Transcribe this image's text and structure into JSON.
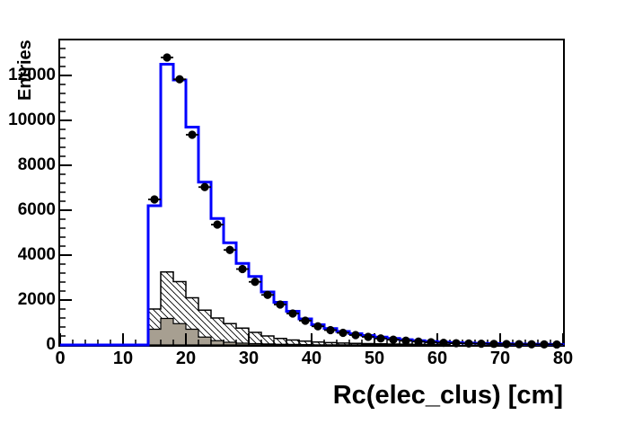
{
  "chart_data": {
    "type": "bar",
    "subtype": "step-histogram-with-points",
    "title": "",
    "xlabel": "Rc(elec_clus) [cm]",
    "ylabel": "Entries",
    "xlim": [
      0,
      80
    ],
    "ylim": [
      0,
      13560
    ],
    "x_ticks": [
      0,
      10,
      20,
      30,
      40,
      50,
      60,
      70,
      80
    ],
    "y_ticks": [
      0,
      2000,
      4000,
      6000,
      8000,
      10000,
      12000
    ],
    "x_minor_step": 2,
    "y_minor_step": 400,
    "grid": "off",
    "legend": "none",
    "bin_start": 14,
    "bin_width": 2,
    "series": [
      {
        "name": "total-histogram",
        "style": "step-line",
        "color": "#0000ff",
        "values": [
          6200,
          12500,
          11800,
          9700,
          7250,
          5630,
          4550,
          3630,
          3050,
          2360,
          1900,
          1500,
          1160,
          900,
          730,
          600,
          500,
          420,
          350,
          290,
          235,
          190,
          155,
          125,
          100,
          85,
          70,
          58,
          48,
          40,
          34,
          29,
          25
        ]
      },
      {
        "name": "background-hatched",
        "style": "hatched-fill",
        "color": "#000000",
        "fill": "diagonal-hatch",
        "values": [
          1600,
          3250,
          2820,
          2100,
          1550,
          1200,
          950,
          750,
          560,
          400,
          290,
          220,
          170,
          130,
          105,
          85,
          70,
          58,
          48,
          40,
          33,
          27,
          22,
          18,
          0,
          0,
          0,
          0,
          0,
          0,
          0,
          0,
          0
        ]
      },
      {
        "name": "background-gray",
        "style": "solid-fill",
        "color": "#a79f91",
        "values": [
          700,
          1180,
          950,
          700,
          350,
          190,
          120,
          80,
          60,
          45,
          33,
          25,
          18,
          0,
          0,
          0,
          0,
          0,
          0,
          0,
          0,
          0,
          0,
          0,
          0,
          0,
          0,
          0,
          0,
          0,
          0,
          0,
          0
        ]
      },
      {
        "name": "data-points",
        "style": "scatter-errorbar",
        "color": "#000000",
        "x": [
          15,
          17,
          19,
          21,
          23,
          25,
          27,
          29,
          31,
          33,
          35,
          37,
          39,
          41,
          43,
          45,
          47,
          49,
          51,
          53,
          55,
          57,
          59,
          61,
          63,
          65,
          67,
          69,
          71,
          73,
          75,
          77,
          79
        ],
        "y": [
          6480,
          12800,
          11830,
          9360,
          7030,
          5360,
          4230,
          3380,
          2810,
          2230,
          1800,
          1400,
          1080,
          830,
          660,
          540,
          440,
          360,
          290,
          235,
          190,
          150,
          120,
          95,
          78,
          65,
          55,
          47,
          40,
          34,
          29,
          25,
          22
        ]
      }
    ]
  }
}
